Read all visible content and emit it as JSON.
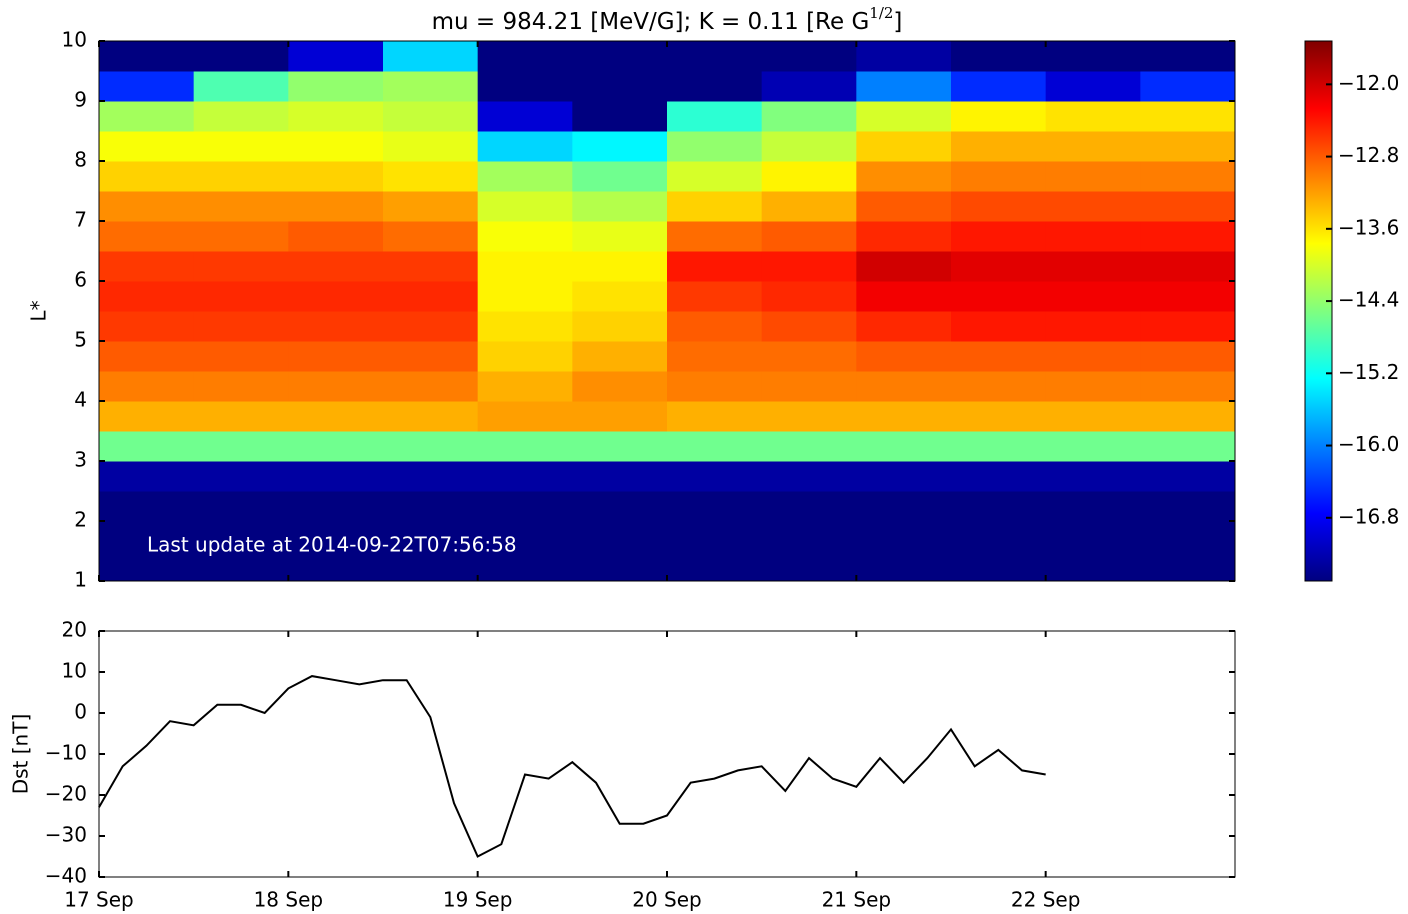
{
  "chart_data": [
    {
      "type": "heatmap",
      "title": "mu = 984.21 [MeV/G]; K = 0.11 [Re G",
      "title_superscript": "1/2",
      "title_suffix": "]",
      "ylabel": "L*",
      "annotation": "Last update at 2014-09-22T07:56:58",
      "colormap": "jet",
      "x_edges": [
        0,
        0.5,
        1,
        1.5,
        2,
        2.5,
        3,
        3.5,
        4,
        4.5,
        5,
        5.5,
        6
      ],
      "y_edges": [
        1,
        1.5,
        2,
        2.5,
        3,
        3.5,
        4,
        4.5,
        5,
        5.5,
        6,
        6.5,
        7,
        7.5,
        8,
        8.5,
        9,
        9.5,
        10
      ],
      "z": [
        [
          -17.5,
          -17.5,
          -17.5,
          -17.5,
          -17.5,
          -17.5,
          -17.5,
          -17.5,
          -17.5,
          -17.5,
          -17.5,
          -17.5
        ],
        [
          -17.5,
          -17.5,
          -17.5,
          -17.5,
          -17.5,
          -17.5,
          -17.5,
          -17.5,
          -17.5,
          -17.5,
          -17.5,
          -17.5
        ],
        [
          -17.5,
          -17.5,
          -17.5,
          -17.5,
          -17.5,
          -17.5,
          -17.5,
          -17.5,
          -17.5,
          -17.5,
          -17.5,
          -17.5
        ],
        [
          -17.3,
          -17.3,
          -17.3,
          -17.3,
          -17.3,
          -17.3,
          -17.3,
          -17.3,
          -17.3,
          -17.3,
          -17.3,
          -17.3
        ],
        [
          -14.6,
          -14.6,
          -14.6,
          -14.6,
          -14.6,
          -14.6,
          -14.6,
          -14.6,
          -14.6,
          -14.6,
          -14.6,
          -14.6
        ],
        [
          -13.3,
          -13.3,
          -13.3,
          -13.3,
          -13.2,
          -13.2,
          -13.3,
          -13.3,
          -13.3,
          -13.3,
          -13.3,
          -13.3
        ],
        [
          -13.0,
          -13.0,
          -13.0,
          -13.0,
          -13.3,
          -13.1,
          -13.0,
          -13.0,
          -13.0,
          -13.0,
          -13.0,
          -13.0
        ],
        [
          -12.8,
          -12.8,
          -12.8,
          -12.8,
          -13.5,
          -13.3,
          -12.9,
          -12.9,
          -12.8,
          -12.8,
          -12.8,
          -12.8
        ],
        [
          -12.6,
          -12.6,
          -12.6,
          -12.6,
          -13.6,
          -13.5,
          -12.8,
          -12.7,
          -12.5,
          -12.4,
          -12.4,
          -12.4
        ],
        [
          -12.5,
          -12.5,
          -12.5,
          -12.5,
          -13.7,
          -13.6,
          -12.6,
          -12.5,
          -12.2,
          -12.2,
          -12.2,
          -12.2
        ],
        [
          -12.6,
          -12.6,
          -12.6,
          -12.6,
          -13.7,
          -13.7,
          -12.4,
          -12.4,
          -12.0,
          -12.1,
          -12.1,
          -12.1
        ],
        [
          -12.9,
          -12.9,
          -12.8,
          -12.9,
          -13.8,
          -13.9,
          -12.9,
          -12.8,
          -12.5,
          -12.4,
          -12.4,
          -12.4
        ],
        [
          -13.1,
          -13.1,
          -13.1,
          -13.2,
          -14.0,
          -14.2,
          -13.5,
          -13.3,
          -12.8,
          -12.7,
          -12.7,
          -12.7
        ],
        [
          -13.5,
          -13.5,
          -13.5,
          -13.6,
          -14.3,
          -14.6,
          -14.0,
          -13.7,
          -13.1,
          -13.0,
          -13.0,
          -13.0
        ],
        [
          -13.8,
          -13.8,
          -13.8,
          -13.9,
          -15.5,
          -15.3,
          -14.4,
          -14.1,
          -13.5,
          -13.3,
          -13.3,
          -13.3
        ],
        [
          -14.3,
          -14.1,
          -14.0,
          -14.1,
          -17.0,
          -17.5,
          -15.0,
          -14.5,
          -14.0,
          -13.7,
          -13.6,
          -13.6
        ],
        [
          -16.5,
          -14.8,
          -14.4,
          -14.3,
          -17.5,
          -17.5,
          -17.5,
          -17.2,
          -16.0,
          -16.5,
          -17.0,
          -16.5
        ],
        [
          -17.5,
          -17.5,
          -17.0,
          -15.5,
          -17.5,
          -17.5,
          -17.5,
          -17.5,
          -17.3,
          -17.5,
          -17.5,
          -17.5
        ]
      ],
      "xlim": [
        0,
        6
      ],
      "xticks": [
        0,
        1,
        2,
        3,
        4,
        5
      ],
      "ylim": [
        1,
        10
      ],
      "yticks": [
        1,
        2,
        3,
        4,
        5,
        6,
        7,
        8,
        9,
        10
      ],
      "clim": [
        -17.5,
        -11.52
      ],
      "cticks": [
        {
          "value": -12.0,
          "label": "−12.0"
        },
        {
          "value": -12.8,
          "label": "−12.8"
        },
        {
          "value": -13.6,
          "label": "−13.6"
        },
        {
          "value": -14.4,
          "label": "−14.4"
        },
        {
          "value": -15.2,
          "label": "−15.2"
        },
        {
          "value": -16.0,
          "label": "−16.0"
        },
        {
          "value": -16.8,
          "label": "−16.8"
        }
      ]
    },
    {
      "type": "line",
      "ylabel": "Dst [nT]",
      "x": [
        0,
        0.125,
        0.25,
        0.375,
        0.5,
        0.625,
        0.75,
        0.875,
        1,
        1.125,
        1.25,
        1.375,
        1.5,
        1.625,
        1.75,
        1.875,
        2,
        2.125,
        2.25,
        2.375,
        2.5,
        2.625,
        2.75,
        2.875,
        3,
        3.125,
        3.25,
        3.375,
        3.5,
        3.625,
        3.75,
        3.875,
        4,
        4.125,
        4.25,
        4.375,
        4.5,
        4.625,
        4.75,
        4.875,
        5
      ],
      "series": [
        {
          "color": "#000000",
          "values": [
            -23,
            -13,
            -8,
            -2,
            -3,
            2,
            2,
            0,
            6,
            9,
            8,
            7,
            8,
            8,
            -1,
            -22,
            -35,
            -32,
            -15,
            -16,
            -12,
            -17,
            -27,
            -27,
            -25,
            -17,
            -16,
            -14,
            -13,
            -19,
            -11,
            -16,
            -18,
            -11,
            -17,
            -11,
            -4,
            -13,
            -9,
            -14,
            -15
          ]
        }
      ],
      "xlim": [
        0,
        6
      ],
      "xticks": [
        {
          "value": 0,
          "label": "17 Sep"
        },
        {
          "value": 1,
          "label": "18 Sep"
        },
        {
          "value": 2,
          "label": "19 Sep"
        },
        {
          "value": 3,
          "label": "20 Sep"
        },
        {
          "value": 4,
          "label": "21 Sep"
        },
        {
          "value": 5,
          "label": "22 Sep"
        }
      ],
      "ylim": [
        -40,
        20
      ],
      "yticks": [
        20,
        10,
        0,
        {
          "value": -10,
          "label": "−10"
        },
        {
          "value": -20,
          "label": "−20"
        },
        {
          "value": -30,
          "label": "−30"
        },
        {
          "value": -40,
          "label": "−40"
        }
      ]
    }
  ]
}
